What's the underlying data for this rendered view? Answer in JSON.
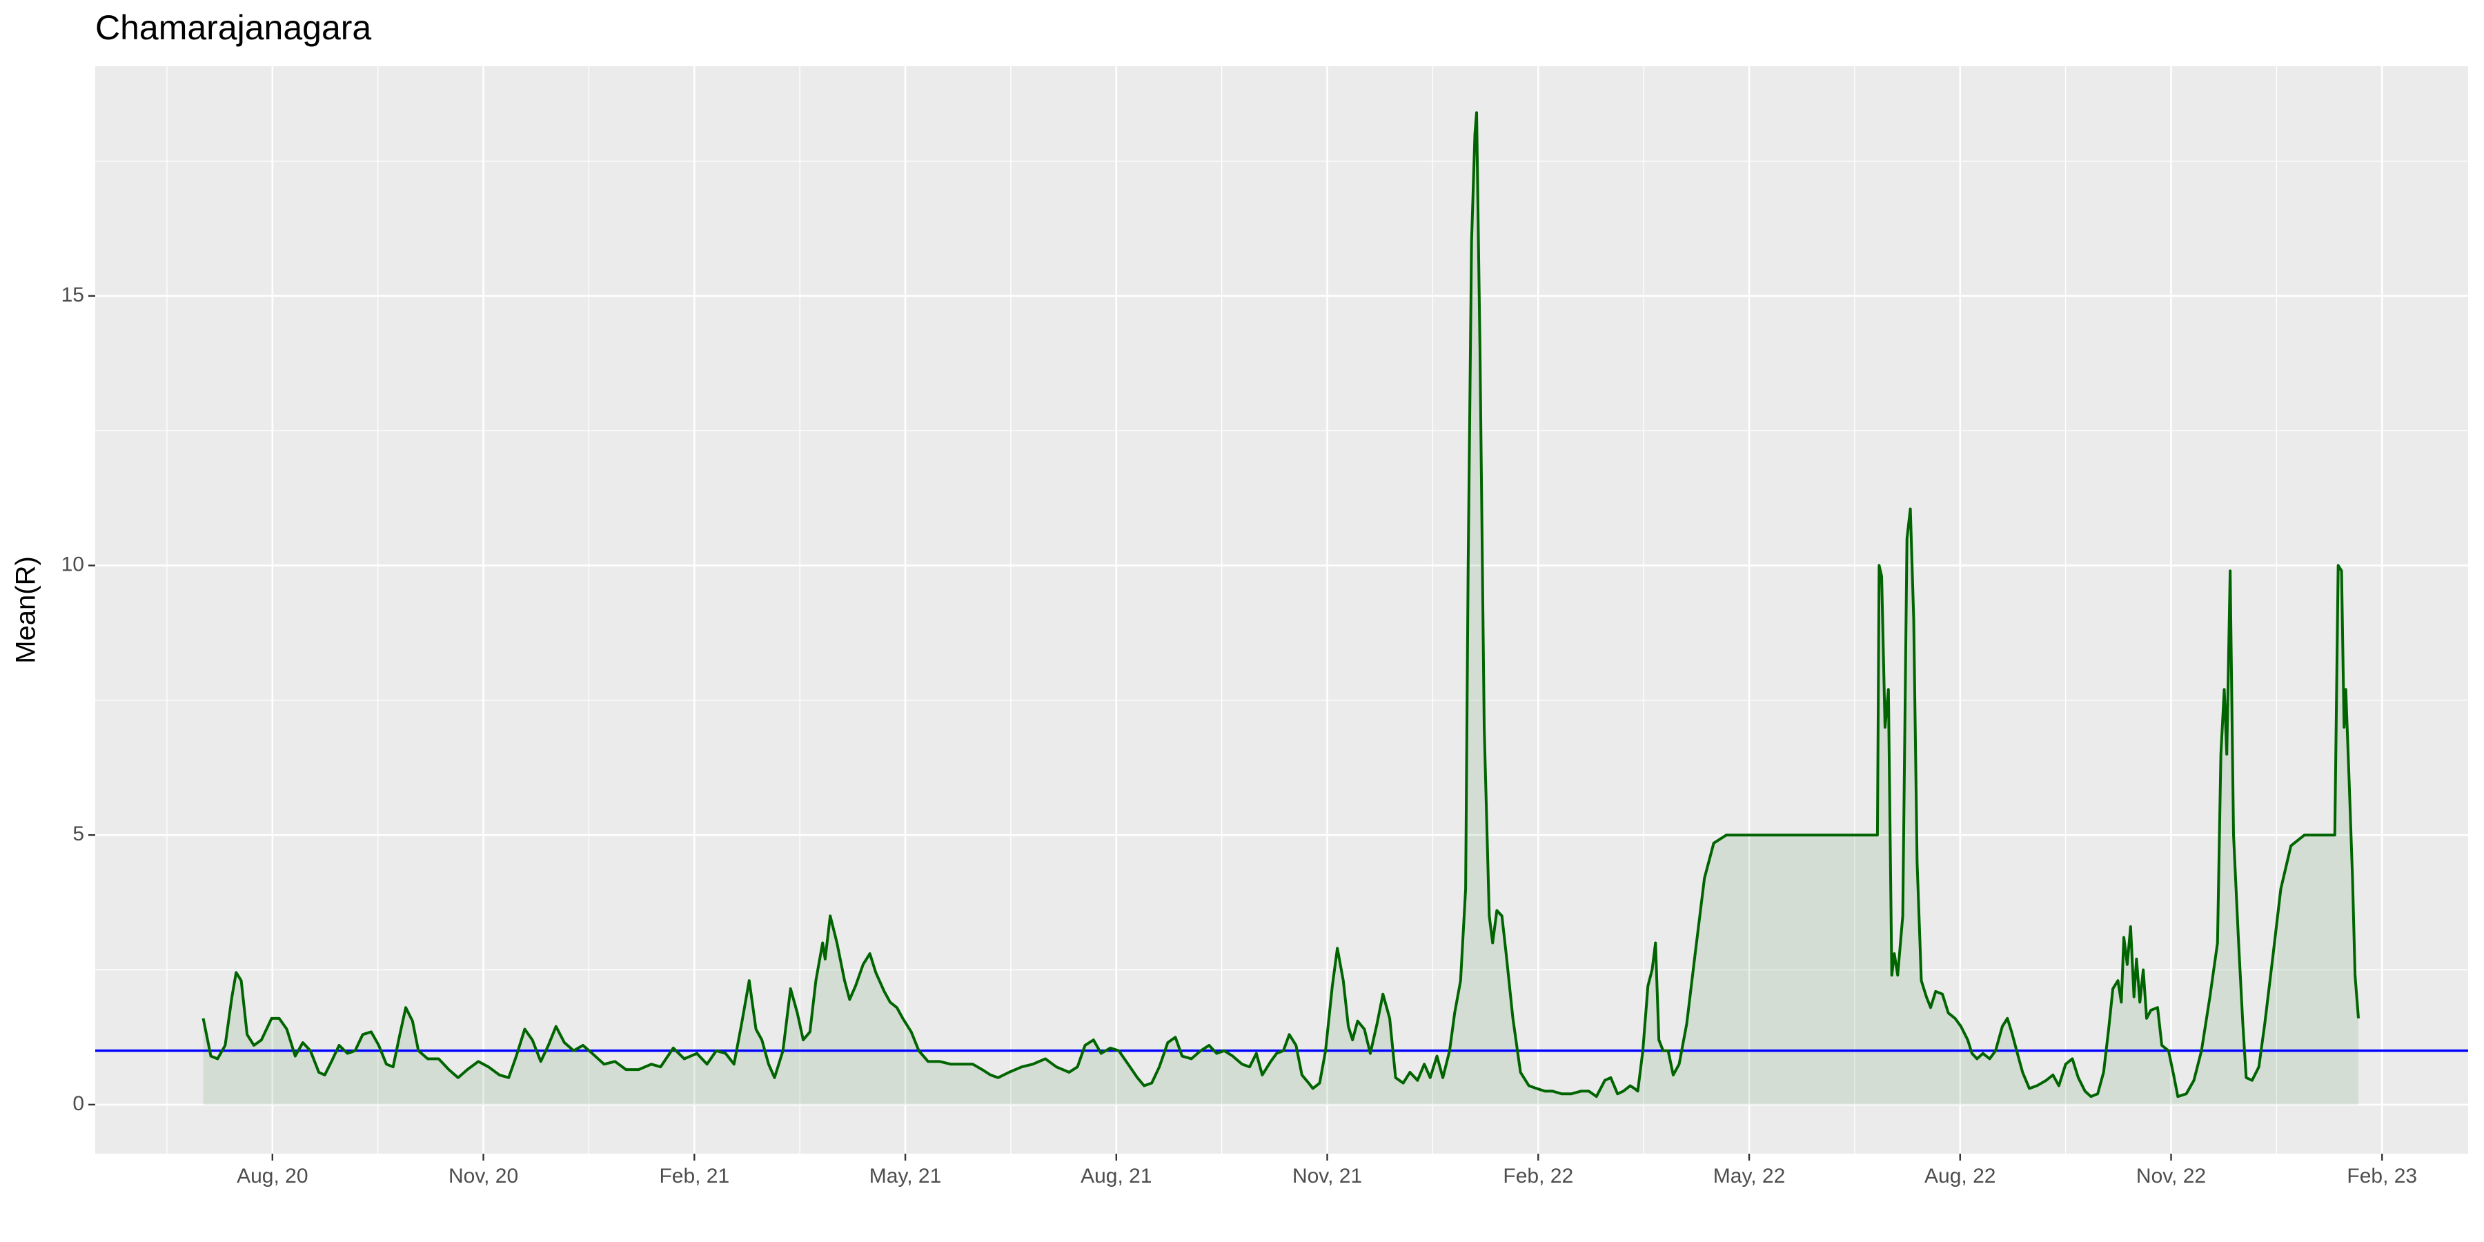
{
  "chart_data": {
    "type": "line",
    "title": "Chamarajanagara",
    "y_label": "Mean(R)",
    "color": "#006400",
    "area": true,
    "grid": true,
    "hline": {
      "value": 1,
      "color": "#0000ff"
    },
    "xlim": [
      2020.373,
      2023.185
    ],
    "ylim": [
      -0.91,
      19.26
    ],
    "yticks": [
      0,
      5,
      10,
      15
    ],
    "xticks": [
      {
        "value": 2020.583,
        "label": "Aug, 20"
      },
      {
        "value": 2020.833,
        "label": "Nov, 20"
      },
      {
        "value": 2021.083,
        "label": "Feb, 21"
      },
      {
        "value": 2021.333,
        "label": "May, 21"
      },
      {
        "value": 2021.583,
        "label": "Aug, 21"
      },
      {
        "value": 2021.833,
        "label": "Nov, 21"
      },
      {
        "value": 2022.083,
        "label": "Feb, 22"
      },
      {
        "value": 2022.333,
        "label": "May, 22"
      },
      {
        "value": 2022.583,
        "label": "Aug, 22"
      },
      {
        "value": 2022.833,
        "label": "Nov, 22"
      },
      {
        "value": 2023.083,
        "label": "Feb, 23"
      }
    ],
    "x": [
      2020.501,
      2020.51,
      2020.518,
      2020.527,
      2020.535,
      2020.54,
      2020.546,
      2020.553,
      2020.561,
      2020.57,
      2020.582,
      2020.591,
      2020.6,
      2020.61,
      2020.619,
      2020.628,
      2020.638,
      2020.645,
      2020.653,
      2020.662,
      2020.672,
      2020.681,
      2020.69,
      2020.7,
      2020.709,
      2020.718,
      2020.726,
      2020.734,
      2020.741,
      2020.749,
      2020.756,
      2020.767,
      2020.78,
      2020.792,
      2020.803,
      2020.814,
      2020.827,
      2020.839,
      2020.852,
      2020.863,
      2020.872,
      2020.882,
      2020.891,
      2020.901,
      2020.91,
      2020.919,
      2020.929,
      2020.94,
      2020.951,
      2020.962,
      2020.976,
      2020.989,
      2021.002,
      2021.017,
      2021.032,
      2021.043,
      2021.058,
      2021.071,
      2021.086,
      2021.098,
      2021.109,
      2021.12,
      2021.13,
      2021.139,
      2021.148,
      2021.156,
      2021.163,
      2021.171,
      2021.178,
      2021.188,
      2021.197,
      2021.205,
      2021.212,
      2021.22,
      2021.227,
      2021.235,
      2021.238,
      2021.244,
      2021.252,
      2021.261,
      2021.267,
      2021.274,
      2021.283,
      2021.291,
      2021.298,
      2021.308,
      2021.315,
      2021.323,
      2021.33,
      2021.34,
      2021.349,
      2021.36,
      2021.374,
      2021.387,
      2021.4,
      2021.413,
      2021.424,
      2021.434,
      2021.443,
      2021.456,
      2021.471,
      2021.484,
      2021.499,
      2021.512,
      2021.527,
      2021.537,
      2021.546,
      2021.556,
      2021.565,
      2021.576,
      2021.586,
      2021.597,
      2021.608,
      2021.616,
      2021.625,
      2021.634,
      2021.644,
      2021.653,
      2021.661,
      2021.672,
      2021.683,
      2021.693,
      2021.702,
      2021.711,
      2021.721,
      2021.732,
      2021.741,
      2021.749,
      2021.756,
      2021.766,
      2021.773,
      2021.781,
      2021.788,
      2021.796,
      2021.803,
      2021.811,
      2021.816,
      2021.824,
      2021.831,
      2021.839,
      2021.845,
      2021.852,
      2021.858,
      2021.863,
      2021.869,
      2021.877,
      2021.884,
      2021.892,
      2021.899,
      2021.907,
      2021.914,
      2021.923,
      2021.931,
      2021.94,
      2021.948,
      2021.955,
      2021.963,
      2021.97,
      2021.978,
      2021.984,
      2021.991,
      2021.997,
      2022.0,
      2022.004,
      2022.008,
      2022.01,
      2022.014,
      2022.019,
      2022.025,
      2022.029,
      2022.034,
      2022.04,
      2022.045,
      2022.053,
      2022.062,
      2022.072,
      2022.081,
      2022.091,
      2022.1,
      2022.111,
      2022.122,
      2022.134,
      2022.143,
      2022.152,
      2022.162,
      2022.169,
      2022.177,
      2022.184,
      2022.192,
      2022.197,
      2022.201,
      2022.207,
      2022.213,
      2022.218,
      2022.222,
      2022.226,
      2022.231,
      2022.237,
      2022.243,
      2022.25,
      2022.259,
      2022.269,
      2022.28,
      2022.291,
      2022.306,
      2022.363,
      2022.419,
      2022.485,
      2022.487,
      2022.49,
      2022.494,
      2022.498,
      2022.502,
      2022.505,
      2022.509,
      2022.515,
      2022.52,
      2022.524,
      2022.528,
      2022.532,
      2022.537,
      2022.543,
      2022.548,
      2022.554,
      2022.562,
      2022.569,
      2022.577,
      2022.584,
      2022.592,
      2022.597,
      2022.603,
      2022.61,
      2022.618,
      2022.625,
      2022.633,
      2022.639,
      2022.644,
      2022.65,
      2022.657,
      2022.665,
      2022.674,
      2022.685,
      2022.693,
      2022.7,
      2022.708,
      2022.716,
      2022.723,
      2022.731,
      2022.738,
      2022.746,
      2022.753,
      2022.759,
      2022.764,
      2022.77,
      2022.774,
      2022.777,
      2022.781,
      2022.785,
      2022.789,
      2022.792,
      2022.796,
      2022.8,
      2022.804,
      2022.809,
      2022.817,
      2022.822,
      2022.83,
      2022.836,
      2022.841,
      2022.851,
      2022.86,
      2022.869,
      2022.879,
      2022.888,
      2022.892,
      2022.896,
      2022.899,
      2022.903,
      2022.907,
      2022.913,
      2022.918,
      2022.922,
      2022.929,
      2022.937,
      2022.944,
      2022.954,
      2022.963,
      2022.975,
      2022.991,
      2023.027,
      2023.031,
      2023.035,
      2023.038,
      2023.04,
      2023.044,
      2023.048,
      2023.051,
      2023.055
    ],
    "values": [
      1.6,
      0.9,
      0.85,
      1.1,
      2.0,
      2.45,
      2.3,
      1.3,
      1.1,
      1.2,
      1.6,
      1.6,
      1.4,
      0.9,
      1.15,
      1.0,
      0.6,
      0.55,
      0.8,
      1.1,
      0.95,
      1.0,
      1.3,
      1.35,
      1.1,
      0.75,
      0.7,
      1.3,
      1.8,
      1.55,
      1.0,
      0.85,
      0.85,
      0.65,
      0.5,
      0.65,
      0.8,
      0.7,
      0.55,
      0.5,
      0.9,
      1.4,
      1.2,
      0.8,
      1.1,
      1.45,
      1.15,
      1.0,
      1.1,
      0.95,
      0.75,
      0.8,
      0.65,
      0.65,
      0.75,
      0.7,
      1.05,
      0.85,
      0.95,
      0.75,
      1.0,
      0.95,
      0.75,
      1.5,
      2.3,
      1.4,
      1.2,
      0.75,
      0.5,
      1.0,
      2.15,
      1.7,
      1.2,
      1.35,
      2.3,
      3.0,
      2.7,
      3.5,
      3.0,
      2.3,
      1.95,
      2.2,
      2.6,
      2.8,
      2.45,
      2.1,
      1.9,
      1.8,
      1.6,
      1.35,
      1.0,
      0.8,
      0.8,
      0.75,
      0.75,
      0.75,
      0.65,
      0.55,
      0.5,
      0.6,
      0.7,
      0.75,
      0.85,
      0.7,
      0.6,
      0.7,
      1.1,
      1.2,
      0.95,
      1.05,
      1.0,
      0.75,
      0.5,
      0.35,
      0.4,
      0.7,
      1.15,
      1.25,
      0.9,
      0.85,
      1.0,
      1.1,
      0.95,
      1.0,
      0.9,
      0.75,
      0.7,
      0.95,
      0.55,
      0.8,
      0.95,
      1.0,
      1.3,
      1.1,
      0.55,
      0.4,
      0.3,
      0.4,
      1.0,
      2.2,
      2.9,
      2.3,
      1.45,
      1.2,
      1.55,
      1.4,
      0.95,
      1.5,
      2.05,
      1.6,
      0.5,
      0.4,
      0.6,
      0.45,
      0.75,
      0.5,
      0.9,
      0.5,
      1.0,
      1.7,
      2.3,
      4.0,
      10.0,
      16.0,
      18.0,
      18.4,
      14.0,
      7.0,
      3.5,
      3.0,
      3.6,
      3.5,
      2.8,
      1.6,
      0.6,
      0.35,
      0.3,
      0.25,
      0.25,
      0.2,
      0.2,
      0.25,
      0.25,
      0.15,
      0.45,
      0.5,
      0.2,
      0.25,
      0.35,
      0.3,
      0.25,
      1.0,
      2.2,
      2.5,
      3.0,
      1.2,
      1.0,
      1.0,
      0.55,
      0.75,
      1.5,
      2.8,
      4.2,
      4.85,
      5.0,
      5.0,
      5.0,
      5.0,
      10.0,
      9.8,
      7.0,
      7.7,
      2.4,
      2.8,
      2.4,
      3.5,
      10.5,
      11.05,
      9.0,
      4.5,
      2.3,
      2.0,
      1.8,
      2.1,
      2.05,
      1.7,
      1.6,
      1.45,
      1.2,
      0.95,
      0.85,
      0.95,
      0.85,
      1.0,
      1.45,
      1.6,
      1.35,
      1.0,
      0.6,
      0.3,
      0.35,
      0.45,
      0.55,
      0.35,
      0.75,
      0.85,
      0.5,
      0.25,
      0.15,
      0.2,
      0.6,
      1.4,
      2.15,
      2.3,
      1.9,
      3.1,
      2.6,
      3.3,
      2.0,
      2.7,
      1.9,
      2.5,
      1.6,
      1.75,
      1.8,
      1.1,
      1.0,
      0.55,
      0.15,
      0.2,
      0.45,
      1.0,
      2.0,
      3.0,
      6.5,
      7.7,
      6.5,
      9.9,
      5.0,
      3.0,
      1.5,
      0.5,
      0.45,
      0.7,
      1.5,
      2.8,
      4.0,
      4.8,
      5.0,
      5.0,
      10.0,
      9.9,
      7.0,
      7.7,
      6.0,
      4.2,
      2.4,
      1.6
    ]
  }
}
